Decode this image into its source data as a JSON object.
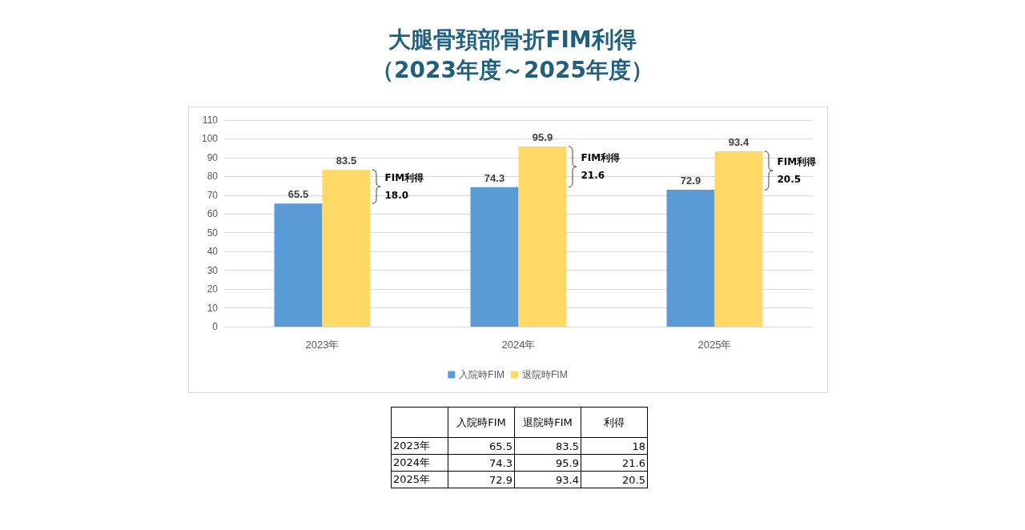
{
  "chart_data": {
    "type": "bar",
    "title": "大腿骨頚部骨折FIM利得",
    "subtitle": "（2023年度～2025年度）",
    "categories": [
      "2023年",
      "2024年",
      "2025年"
    ],
    "series": [
      {
        "name": "入院時FIM",
        "color": "#5b9bd5",
        "values": [
          65.5,
          74.3,
          72.9
        ]
      },
      {
        "name": "退院時FIM",
        "color": "#ffd966",
        "values": [
          83.5,
          95.9,
          93.4
        ]
      }
    ],
    "ylim": [
      0,
      110
    ],
    "yticks": [
      0,
      10,
      20,
      30,
      40,
      50,
      60,
      70,
      80,
      90,
      100,
      110
    ],
    "grid": "y",
    "legend": "bottom",
    "data_labels": true,
    "annotations": [
      "FIM利得\n18.0",
      "FIM利得\n21.6",
      "FIM利得\n20.5",
      " 入院時FIM 退院時FIM 利得",
      "2023年 65.5 83.5 18",
      "2024年 74.3 95.9 21.6",
      "2025年 72.9 93.4 20.5"
    ]
  }
}
